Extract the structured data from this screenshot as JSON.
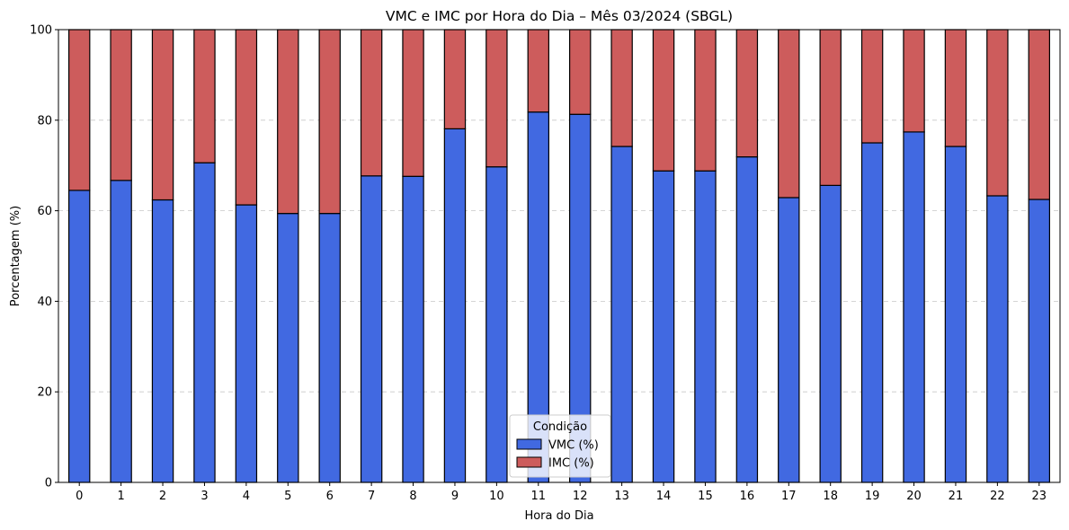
{
  "chart_data": {
    "type": "bar",
    "stacked": true,
    "title": "VMC e IMC por Hora do Dia – Mês 03/2024 (SBGL)",
    "xlabel": "Hora do Dia",
    "ylabel": "Porcentagem (%)",
    "ylim": [
      0,
      100
    ],
    "yticks": [
      0,
      20,
      40,
      60,
      80,
      100
    ],
    "grid": "y-dashed",
    "categories": [
      "0",
      "1",
      "2",
      "3",
      "4",
      "5",
      "6",
      "7",
      "8",
      "9",
      "10",
      "11",
      "12",
      "13",
      "14",
      "15",
      "16",
      "17",
      "18",
      "19",
      "20",
      "21",
      "22",
      "23"
    ],
    "series": [
      {
        "name": "VMC (%)",
        "color": "#4169e1",
        "values": [
          64.5,
          66.7,
          62.4,
          70.6,
          61.3,
          59.4,
          59.4,
          67.7,
          67.6,
          78.1,
          69.7,
          81.8,
          81.3,
          74.2,
          68.8,
          68.8,
          71.9,
          62.9,
          65.6,
          75.0,
          77.4,
          74.2,
          63.3,
          62.5
        ]
      },
      {
        "name": "IMC (%)",
        "color": "#cd5c5c",
        "values": [
          35.5,
          33.3,
          37.6,
          29.4,
          38.7,
          40.6,
          40.6,
          32.3,
          32.4,
          21.9,
          30.3,
          18.2,
          18.7,
          25.8,
          31.2,
          31.2,
          28.1,
          37.1,
          34.4,
          25.0,
          22.6,
          25.8,
          36.7,
          37.5
        ]
      }
    ],
    "legend": {
      "title": "Condição",
      "placement": "bottom-center"
    }
  }
}
